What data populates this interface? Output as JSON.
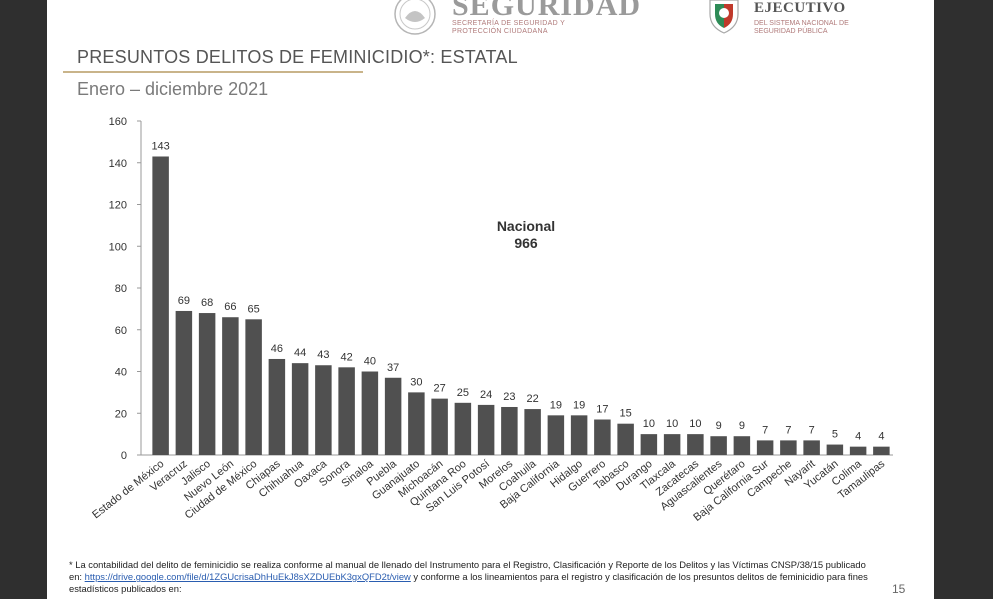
{
  "header": {
    "left_logo_title": "SEGURIDAD",
    "left_logo_subtitle": "SECRETARÍA DE SEGURIDAD Y PROTECCIÓN CIUDADANA",
    "right_logo_title": "EJECUTIVO",
    "right_logo_subtitle": "DEL SISTEMA NACIONAL DE SEGURIDAD PÚBLICA"
  },
  "slide": {
    "title": "PRESUNTOS DELITOS DE FEMINICIDIO*: ESTATAL",
    "subtitle": "Enero – diciembre 2021",
    "page_number": "15"
  },
  "annotation": {
    "label": "Nacional",
    "value": "966"
  },
  "footnote": {
    "part1": "* La contabilidad del delito de feminicidio se realiza conforme al manual de llenado del Instrumento para el Registro, Clasificación y Reporte de los Delitos y las Víctimas CNSP/38/15 publicado en: ",
    "link1": "https://drive.google.com/file/d/1ZGUcrisaDhHuEkJ8sXZDUEbK3gxQFD2t/view",
    "part2": " y conforme a los lineamientos para el registro y clasificación de los presuntos delitos de feminicidio para fines estadísticos publicados en:"
  },
  "colors": {
    "bar": "#505050",
    "axis": "#999999",
    "text": "#333333"
  },
  "chart_data": {
    "type": "bar",
    "title": "PRESUNTOS DELITOS DE FEMINICIDIO*: ESTATAL",
    "subtitle": "Enero – diciembre 2021",
    "categories": [
      "Estado de México",
      "Veracruz",
      "Jalisco",
      "Nuevo León",
      "Ciudad de México",
      "Chiapas",
      "Chihuahua",
      "Oaxaca",
      "Sonora",
      "Sinaloa",
      "Puebla",
      "Guanajuato",
      "Michoacán",
      "Quintana Roo",
      "San Luis Potosí",
      "Morelos",
      "Coahuila",
      "Baja California",
      "Hidalgo",
      "Guerrero",
      "Tabasco",
      "Durango",
      "Tlaxcala",
      "Zacatecas",
      "Aguascalientes",
      "Querétaro",
      "Baja California Sur",
      "Campeche",
      "Nayarit",
      "Yucatán",
      "Colima",
      "Tamaulipas"
    ],
    "values": [
      143,
      69,
      68,
      66,
      65,
      46,
      44,
      43,
      42,
      40,
      37,
      30,
      27,
      25,
      24,
      23,
      22,
      19,
      19,
      17,
      15,
      10,
      10,
      10,
      9,
      9,
      7,
      7,
      7,
      5,
      4,
      4
    ],
    "yticks": [
      "0",
      "20",
      "40",
      "60",
      "80",
      "100",
      "120",
      "140",
      "160"
    ],
    "ylim": [
      0,
      160
    ],
    "xlabel": "",
    "ylabel": "",
    "legend": "none",
    "grid": false
  }
}
